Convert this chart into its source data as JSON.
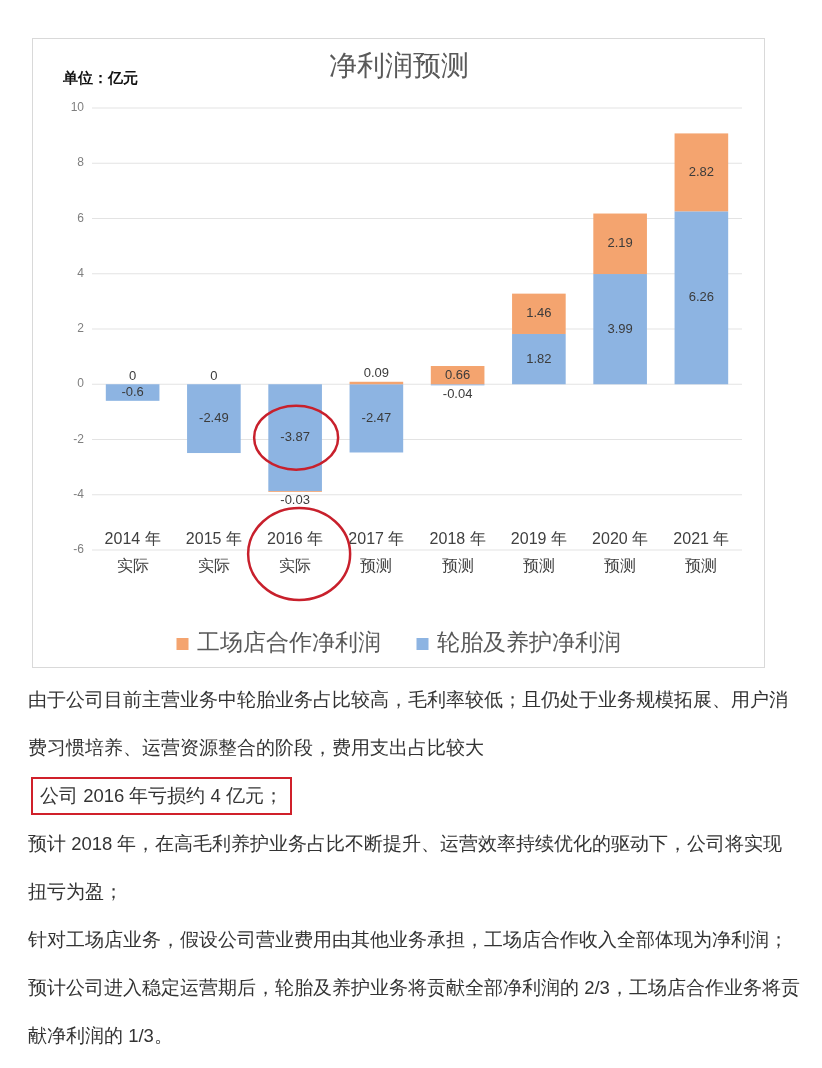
{
  "chart_data": {
    "type": "bar",
    "title": "净利润预测",
    "ylabel": "单位：亿元",
    "categories": [
      "2014 年实际",
      "2015 年实际",
      "2016 年实际",
      "2017 年预测",
      "2018 年预测",
      "2019 年预测",
      "2020 年预测",
      "2021 年预测"
    ],
    "series": [
      {
        "name": "轮胎及养护净利润",
        "color": "#8db4e2",
        "values": [
          -0.6,
          -2.49,
          -3.87,
          -2.47,
          -0.04,
          1.82,
          3.99,
          6.26
        ]
      },
      {
        "name": "工场店合作净利润",
        "color": "#f4a46f",
        "values": [
          0,
          0,
          -0.03,
          0.09,
          0.66,
          1.46,
          2.19,
          2.82
        ]
      }
    ],
    "stacked": true,
    "ylim": [
      -6,
      10
    ],
    "yticks": [
      -6,
      -4,
      -2,
      0,
      2,
      4,
      6,
      8,
      10
    ],
    "grid": "y",
    "data_labels": true,
    "legend": "bottom",
    "annotations": [
      "由于公司目前主营业务中轮胎业务占比较高，毛利率较低；且仍处于业务规模拓展、用户消费习惯培养、运营资源整合的阶段，费用支出占比较大",
      "公司 2016 年亏损约 4 亿元；",
      "预计 2018 年，在高毛利养护业务占比不断提升、运营效率持续优化的驱动下，公司将实现扭亏为盈；",
      "针对工场店业务，假设公司营业费用由其他业务承担，工场店合作收入全部体现为净利润；",
      "预计公司进入稳定运营期后，轮胎及养护业务将贡献全部净利润的 2/3，工场店合作业务将贡献净利润的 1/3。"
    ]
  }
}
